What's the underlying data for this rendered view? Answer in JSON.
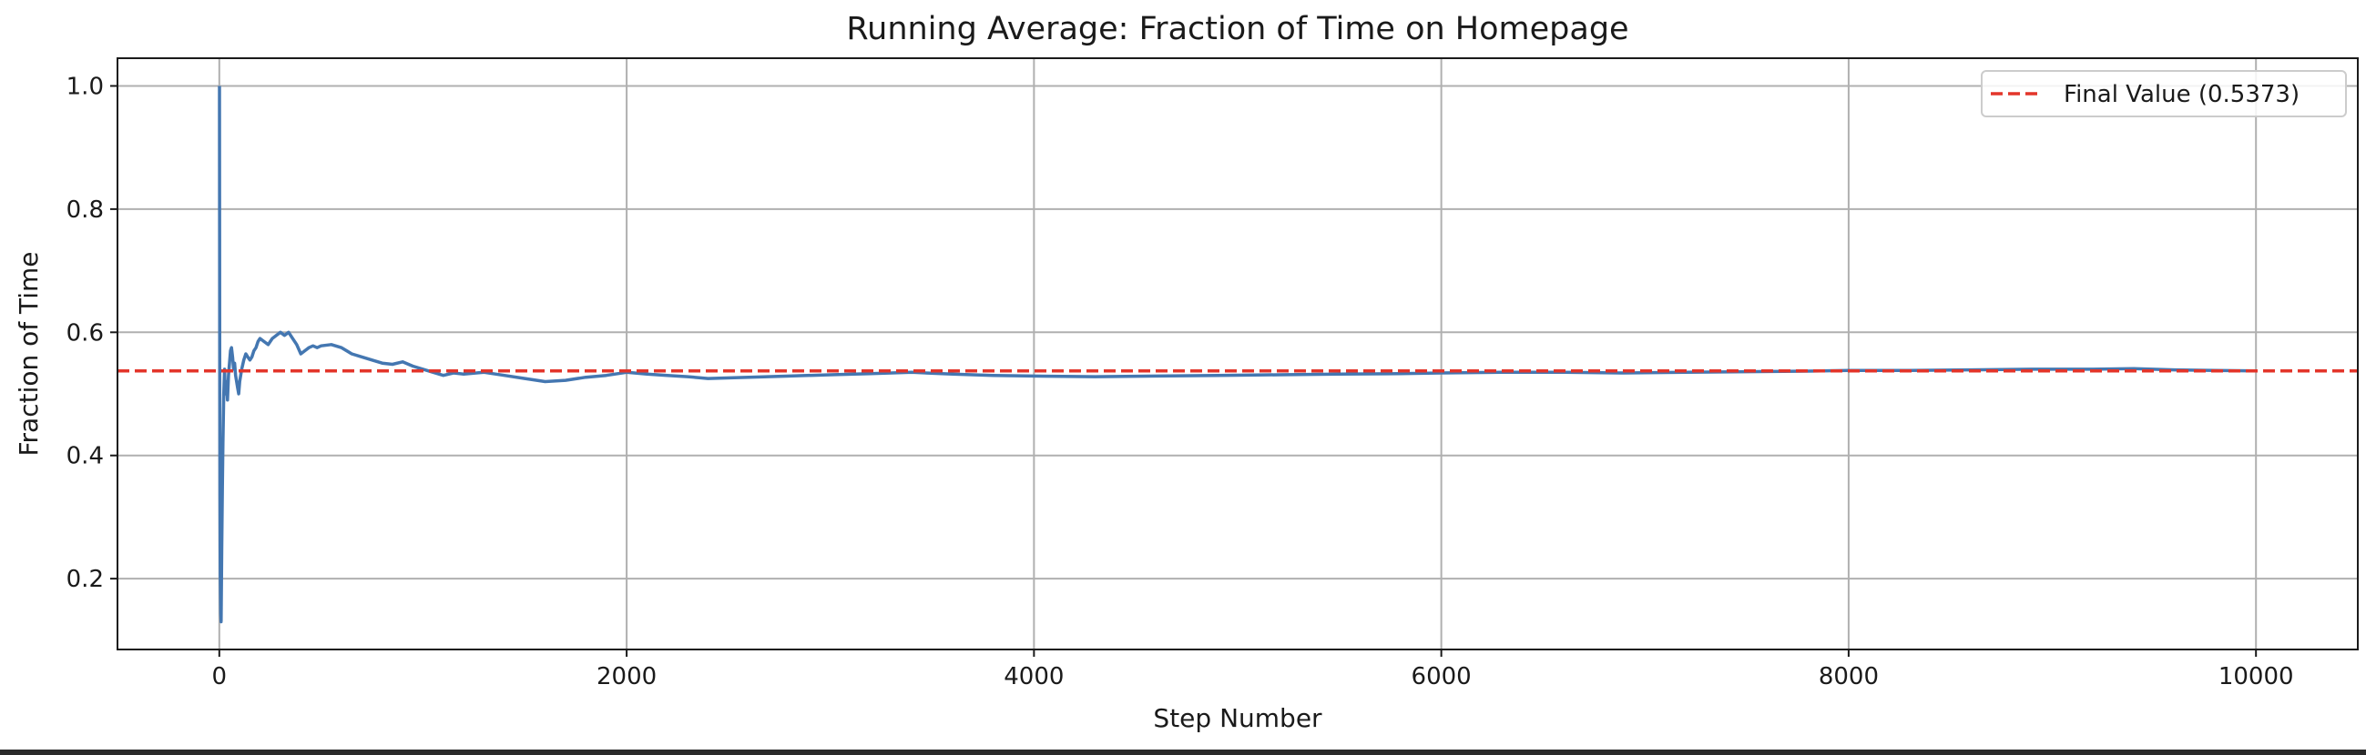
{
  "chart_data": {
    "type": "line",
    "title": "Running Average: Fraction of Time on Homepage",
    "xlabel": "Step Number",
    "ylabel": "Fraction of Time",
    "xlim": [
      -500,
      10500
    ],
    "ylim": [
      0.085,
      1.045
    ],
    "xticks": [
      0,
      2000,
      4000,
      6000,
      8000,
      10000
    ],
    "xtick_labels": [
      "0",
      "2000",
      "4000",
      "6000",
      "8000",
      "10000"
    ],
    "yticks": [
      0.2,
      0.4,
      0.6,
      0.8,
      1.0
    ],
    "ytick_labels": [
      "0.2",
      "0.4",
      "0.6",
      "0.8",
      "1.0"
    ],
    "grid": true,
    "legend_position": "top-right",
    "series": [
      {
        "style": "solid",
        "color": "#4477b1",
        "x": [
          1,
          2,
          3,
          4,
          5,
          7,
          9,
          12,
          15,
          18,
          22,
          26,
          30,
          35,
          40,
          45,
          50,
          55,
          60,
          65,
          70,
          75,
          80,
          85,
          90,
          95,
          100,
          110,
          120,
          130,
          140,
          150,
          160,
          170,
          180,
          190,
          200,
          220,
          240,
          260,
          280,
          300,
          320,
          340,
          360,
          380,
          400,
          420,
          440,
          460,
          480,
          500,
          550,
          600,
          650,
          700,
          750,
          800,
          850,
          900,
          950,
          1000,
          1050,
          1100,
          1150,
          1200,
          1300,
          1400,
          1500,
          1600,
          1700,
          1800,
          1900,
          2000,
          2100,
          2200,
          2300,
          2400,
          2600,
          2800,
          3000,
          3200,
          3400,
          3600,
          3800,
          4000,
          4300,
          4600,
          4900,
          5200,
          5500,
          5800,
          6000,
          6300,
          6600,
          6900,
          7200,
          7500,
          7800,
          8000,
          8300,
          8600,
          8900,
          9200,
          9400,
          9600,
          9800,
          10000
        ],
        "y": [
          1.0,
          0.5,
          0.333,
          0.25,
          0.2,
          0.143,
          0.13,
          0.25,
          0.35,
          0.42,
          0.5,
          0.54,
          0.5,
          0.52,
          0.49,
          0.53,
          0.55,
          0.57,
          0.575,
          0.56,
          0.54,
          0.55,
          0.53,
          0.52,
          0.51,
          0.5,
          0.52,
          0.54,
          0.555,
          0.565,
          0.56,
          0.555,
          0.56,
          0.57,
          0.575,
          0.585,
          0.59,
          0.585,
          0.58,
          0.59,
          0.595,
          0.6,
          0.595,
          0.6,
          0.59,
          0.58,
          0.565,
          0.57,
          0.575,
          0.578,
          0.575,
          0.578,
          0.58,
          0.575,
          0.565,
          0.56,
          0.555,
          0.55,
          0.548,
          0.552,
          0.545,
          0.54,
          0.535,
          0.53,
          0.534,
          0.532,
          0.535,
          0.53,
          0.525,
          0.52,
          0.522,
          0.527,
          0.53,
          0.535,
          0.532,
          0.53,
          0.528,
          0.525,
          0.527,
          0.529,
          0.531,
          0.533,
          0.535,
          0.532,
          0.53,
          0.529,
          0.528,
          0.529,
          0.53,
          0.531,
          0.532,
          0.533,
          0.534,
          0.535,
          0.535,
          0.534,
          0.535,
          0.536,
          0.537,
          0.538,
          0.538,
          0.539,
          0.54,
          0.54,
          0.541,
          0.539,
          0.538,
          0.5373
        ]
      },
      {
        "name": "Final Value (0.5373)",
        "style": "dashed",
        "color": "#e3352a",
        "x": [
          -500,
          10500
        ],
        "y": [
          0.5373,
          0.5373
        ]
      }
    ]
  }
}
